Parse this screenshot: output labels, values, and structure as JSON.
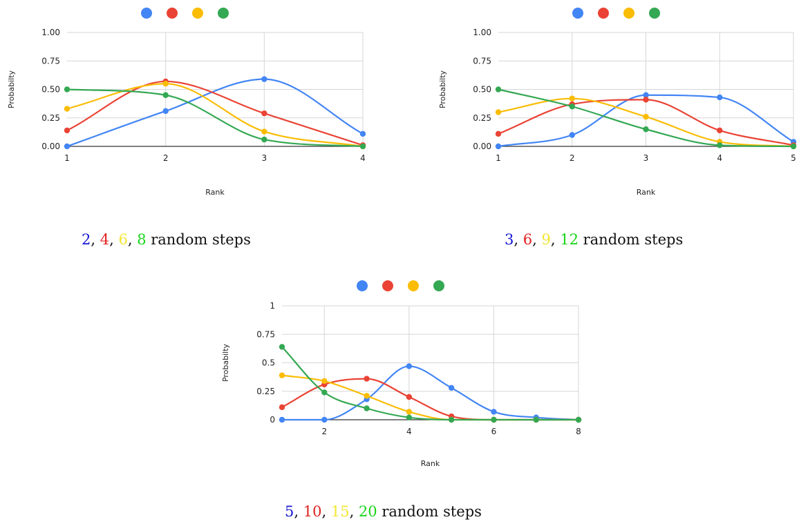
{
  "chart_data": [
    {
      "type": "line",
      "smooth": true,
      "legend_position": "top",
      "legend_labels": false,
      "grid": true,
      "xlabel": "Rank",
      "ylabel": "Probabilty",
      "xlim": [
        1,
        4
      ],
      "ylim": [
        0,
        1
      ],
      "xticks": [
        "1",
        "2",
        "3",
        "4"
      ],
      "xtick_values": [
        1,
        2,
        3,
        4
      ],
      "yticks": [
        "0.00",
        "0.25",
        "0.50",
        "0.75",
        "1.00"
      ],
      "ytick_values": [
        0,
        0.25,
        0.5,
        0.75,
        1
      ],
      "x": [
        1,
        2,
        3,
        4
      ],
      "series": [
        {
          "color": "#4285F4",
          "values": [
            0.0,
            0.31,
            0.59,
            0.11
          ]
        },
        {
          "color": "#EA4335",
          "values": [
            0.14,
            0.57,
            0.29,
            0.01
          ]
        },
        {
          "color": "#FBBC04",
          "values": [
            0.33,
            0.55,
            0.13,
            0.0
          ]
        },
        {
          "color": "#34A853",
          "values": [
            0.5,
            0.45,
            0.06,
            0.0
          ]
        }
      ],
      "caption": [
        {
          "text": "2",
          "color": "#1515D6"
        },
        {
          "text": ", ",
          "color": "#111111"
        },
        {
          "text": "4",
          "color": "#E02020"
        },
        {
          "text": ", ",
          "color": "#111111"
        },
        {
          "text": "6",
          "color": "#F2E632"
        },
        {
          "text": ", ",
          "color": "#111111"
        },
        {
          "text": "8",
          "color": "#18D418"
        },
        {
          "text": " random steps",
          "color": "#111111"
        }
      ]
    },
    {
      "type": "line",
      "smooth": true,
      "legend_position": "top",
      "legend_labels": false,
      "grid": true,
      "xlabel": "Rank",
      "ylabel": "Probabilty",
      "xlim": [
        1,
        5
      ],
      "ylim": [
        0,
        1
      ],
      "xticks": [
        "1",
        "2",
        "3",
        "4",
        "5"
      ],
      "xtick_values": [
        1,
        2,
        3,
        4,
        5
      ],
      "yticks": [
        "0.00",
        "0.25",
        "0.50",
        "0.75",
        "1.00"
      ],
      "ytick_values": [
        0,
        0.25,
        0.5,
        0.75,
        1
      ],
      "x": [
        1,
        2,
        3,
        4,
        5
      ],
      "series": [
        {
          "color": "#4285F4",
          "values": [
            0.0,
            0.1,
            0.45,
            0.43,
            0.04
          ]
        },
        {
          "color": "#EA4335",
          "values": [
            0.11,
            0.37,
            0.41,
            0.14,
            0.01
          ]
        },
        {
          "color": "#FBBC04",
          "values": [
            0.3,
            0.42,
            0.26,
            0.04,
            0.0
          ]
        },
        {
          "color": "#34A853",
          "values": [
            0.5,
            0.35,
            0.15,
            0.01,
            0.0
          ]
        }
      ],
      "caption": [
        {
          "text": "3",
          "color": "#1515D6"
        },
        {
          "text": ", ",
          "color": "#111111"
        },
        {
          "text": "6",
          "color": "#E02020"
        },
        {
          "text": ", ",
          "color": "#111111"
        },
        {
          "text": "9",
          "color": "#F2E632"
        },
        {
          "text": ", ",
          "color": "#111111"
        },
        {
          "text": "12",
          "color": "#18D418"
        },
        {
          "text": " random steps",
          "color": "#111111"
        }
      ]
    },
    {
      "type": "line",
      "smooth": true,
      "legend_position": "top",
      "legend_labels": false,
      "grid": true,
      "xlabel": "Rank",
      "ylabel": "Probabilty",
      "xlim": [
        1,
        8
      ],
      "ylim": [
        0,
        1
      ],
      "xticks": [
        "2",
        "4",
        "6",
        "8"
      ],
      "xtick_values": [
        2,
        4,
        6,
        8
      ],
      "yticks": [
        "0",
        "0.25",
        "0.5",
        "0.75",
        "1"
      ],
      "ytick_values": [
        0,
        0.25,
        0.5,
        0.75,
        1
      ],
      "x": [
        1,
        2,
        3,
        4,
        5,
        6,
        7,
        8
      ],
      "series": [
        {
          "color": "#4285F4",
          "values": [
            0.0,
            0.0,
            0.18,
            0.47,
            0.28,
            0.07,
            0.02,
            0.0
          ]
        },
        {
          "color": "#EA4335",
          "values": [
            0.11,
            0.31,
            0.36,
            0.2,
            0.03,
            0.0,
            0.0,
            0.0
          ]
        },
        {
          "color": "#FBBC04",
          "values": [
            0.39,
            0.34,
            0.21,
            0.07,
            0.0,
            0.0,
            0.0,
            0.0
          ]
        },
        {
          "color": "#34A853",
          "values": [
            0.64,
            0.24,
            0.1,
            0.02,
            0.0,
            0.0,
            0.0,
            0.0
          ]
        }
      ],
      "caption": [
        {
          "text": "5",
          "color": "#1515D6"
        },
        {
          "text": ", ",
          "color": "#111111"
        },
        {
          "text": "10",
          "color": "#E02020"
        },
        {
          "text": ", ",
          "color": "#111111"
        },
        {
          "text": "15",
          "color": "#F2E632"
        },
        {
          "text": ", ",
          "color": "#111111"
        },
        {
          "text": "20",
          "color": "#18D418"
        },
        {
          "text": " random steps",
          "color": "#111111"
        }
      ]
    }
  ]
}
